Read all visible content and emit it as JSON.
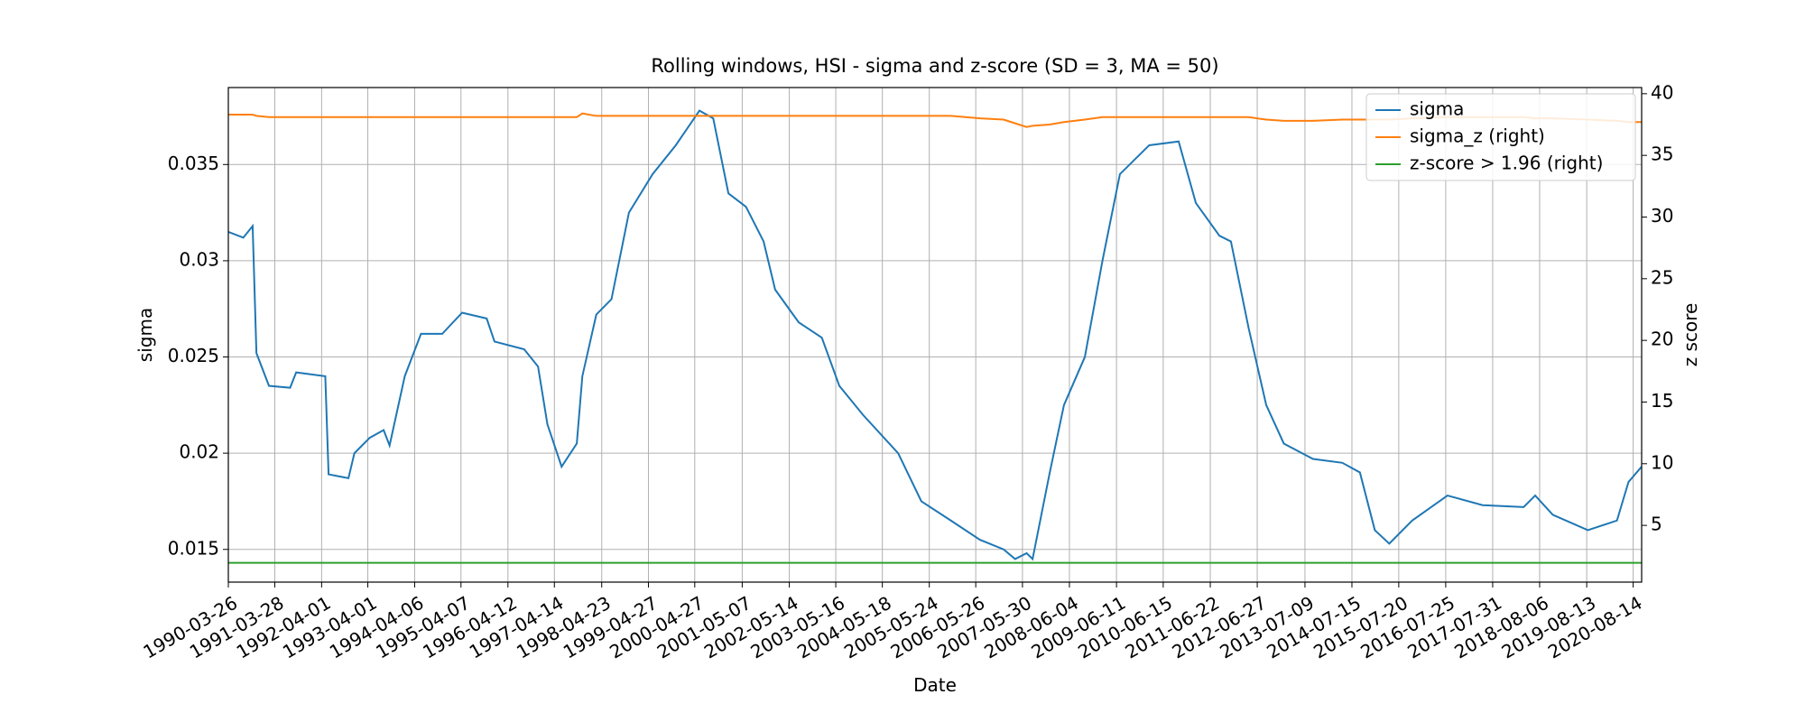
{
  "chart_data": {
    "type": "line",
    "title": "Rolling windows, HSI - sigma and z-score (SD = 3, MA = 50)",
    "xlabel": "Date",
    "ylabel": "sigma",
    "y2label": "z score",
    "x": [
      "1990-03-26",
      "1990-07-22",
      "1990-10-04",
      "1990-11-03",
      "1991-02-10",
      "1991-07-27",
      "1991-09-13",
      "1992-04-30",
      "1992-05-26",
      "1992-10-30",
      "1992-12-16",
      "1993-04-16",
      "1993-08-04",
      "1993-09-20",
      "1994-01-18",
      "1994-05-26",
      "1994-11-10",
      "1995-04-16",
      "1995-10-27",
      "1995-12-28",
      "1996-08-18",
      "1996-12-06",
      "1997-02-18",
      "1997-06-10",
      "1997-10-08",
      "1997-11-21",
      "1998-03-11",
      "1998-07-09",
      "1998-11-24",
      "1999-05-30",
      "1999-11-29",
      "2000-06-03",
      "2000-09-20",
      "2001-01-18",
      "2001-06-06",
      "2001-10-23",
      "2002-01-22",
      "2002-07-27",
      "2003-01-26",
      "2003-06-13",
      "2003-12-16",
      "2004-09-20",
      "2005-03-22",
      "2005-11-10",
      "2006-06-28",
      "2007-01-01",
      "2007-04-02",
      "2007-07-02",
      "2007-08-18",
      "2008-01-01",
      "2008-04-22",
      "2008-10-04",
      "2009-02-20",
      "2009-07-08",
      "2010-02-24",
      "2010-10-15",
      "2011-02-28",
      "2011-09-02",
      "2011-12-02",
      "2012-04-20",
      "2012-09-06",
      "2013-01-23",
      "2013-09-10",
      "2014-04-30",
      "2014-09-16",
      "2015-01-12",
      "2015-05-06",
      "2015-11-03",
      "2016-08-08",
      "2017-05-12",
      "2018-04-02",
      "2018-07-02",
      "2018-11-18",
      "2019-08-22",
      "2020-04-08",
      "2020-07-08",
      "2020-10-20"
    ],
    "series": [
      {
        "name": "sigma",
        "color": "#1f77b4",
        "axis": "y",
        "values": [
          0.0315,
          0.0312,
          0.0318,
          0.0252,
          0.0235,
          0.0234,
          0.0242,
          0.024,
          0.0189,
          0.0187,
          0.02,
          0.0208,
          0.0212,
          0.0204,
          0.024,
          0.0262,
          0.0262,
          0.0273,
          0.027,
          0.0258,
          0.0254,
          0.0245,
          0.0215,
          0.0193,
          0.0205,
          0.024,
          0.0272,
          0.028,
          0.0325,
          0.0345,
          0.036,
          0.0378,
          0.0374,
          0.0335,
          0.0328,
          0.031,
          0.0285,
          0.0268,
          0.026,
          0.0235,
          0.022,
          0.02,
          0.0175,
          0.0165,
          0.0155,
          0.015,
          0.0145,
          0.0148,
          0.0145,
          0.019,
          0.0225,
          0.025,
          0.03,
          0.0345,
          0.036,
          0.0362,
          0.033,
          0.0313,
          0.031,
          0.0265,
          0.0225,
          0.0205,
          0.0197,
          0.0195,
          0.019,
          0.016,
          0.0153,
          0.0165,
          0.0178,
          0.0173,
          0.0172,
          0.0178,
          0.0168,
          0.016,
          0.0165,
          0.0185,
          0.0193
        ]
      },
      {
        "name": "sigma_z (right)",
        "color": "#ff7f0e",
        "axis": "y2",
        "values": [
          38.3,
          38.3,
          38.3,
          38.2,
          38.1,
          38.1,
          38.1,
          38.1,
          38.1,
          38.1,
          38.1,
          38.1,
          38.1,
          38.1,
          38.1,
          38.1,
          38.1,
          38.1,
          38.1,
          38.1,
          38.1,
          38.1,
          38.1,
          38.1,
          38.1,
          38.4,
          38.2,
          38.2,
          38.2,
          38.2,
          38.2,
          38.2,
          38.2,
          38.2,
          38.2,
          38.2,
          38.2,
          38.2,
          38.2,
          38.2,
          38.2,
          38.2,
          38.2,
          38.2,
          38.0,
          37.9,
          37.6,
          37.3,
          37.4,
          37.5,
          37.7,
          37.9,
          38.1,
          38.1,
          38.1,
          38.1,
          38.1,
          38.1,
          38.1,
          38.1,
          37.9,
          37.8,
          37.8,
          37.9,
          37.9,
          37.9,
          37.9,
          38.0,
          38.1,
          38.1,
          38.1,
          38.0,
          38.0,
          37.9,
          37.8,
          37.7,
          37.7
        ]
      },
      {
        "name": "z-score > 1.96 (right)",
        "color": "#2ca02c",
        "axis": "y2",
        "values": [
          1.96,
          1.96,
          1.96,
          1.96,
          1.96,
          1.96,
          1.96,
          1.96,
          1.96,
          1.96,
          1.96,
          1.96,
          1.96,
          1.96,
          1.96,
          1.96,
          1.96,
          1.96,
          1.96,
          1.96,
          1.96,
          1.96,
          1.96,
          1.96,
          1.96,
          1.96,
          1.96,
          1.96,
          1.96,
          1.96,
          1.96,
          1.96,
          1.96,
          1.96,
          1.96,
          1.96,
          1.96,
          1.96,
          1.96,
          1.96,
          1.96,
          1.96,
          1.96,
          1.96,
          1.96,
          1.96,
          1.96,
          1.96,
          1.96,
          1.96,
          1.96,
          1.96,
          1.96,
          1.96,
          1.96,
          1.96,
          1.96,
          1.96,
          1.96,
          1.96,
          1.96,
          1.96,
          1.96,
          1.96,
          1.96,
          1.96,
          1.96,
          1.96,
          1.96,
          1.96,
          1.96,
          1.96,
          1.96,
          1.96,
          1.96,
          1.96,
          1.96
        ]
      }
    ],
    "xlim": [
      "1990-03-26",
      "2020-10-20"
    ],
    "xticks": [
      "1990-03-26",
      "1991-03-28",
      "1992-04-01",
      "1993-04-01",
      "1994-04-06",
      "1995-04-07",
      "1996-04-12",
      "1997-04-14",
      "1998-04-23",
      "1999-04-27",
      "2000-04-27",
      "2001-05-07",
      "2002-05-14",
      "2003-05-16",
      "2004-05-18",
      "2005-05-24",
      "2006-05-26",
      "2007-05-30",
      "2008-06-04",
      "2009-06-11",
      "2010-06-15",
      "2011-06-22",
      "2012-06-27",
      "2013-07-09",
      "2014-07-15",
      "2015-07-20",
      "2016-07-25",
      "2017-07-31",
      "2018-08-06",
      "2019-08-13",
      "2020-08-14"
    ],
    "ylim": [
      0.0133,
      0.039
    ],
    "yticks": [
      0.015,
      0.02,
      0.025,
      0.03,
      0.035
    ],
    "y2lim": [
      0.4,
      40.5
    ],
    "y2ticks": [
      5,
      10,
      15,
      20,
      25,
      30,
      35,
      40
    ],
    "grid": true,
    "legend": "upper right"
  }
}
